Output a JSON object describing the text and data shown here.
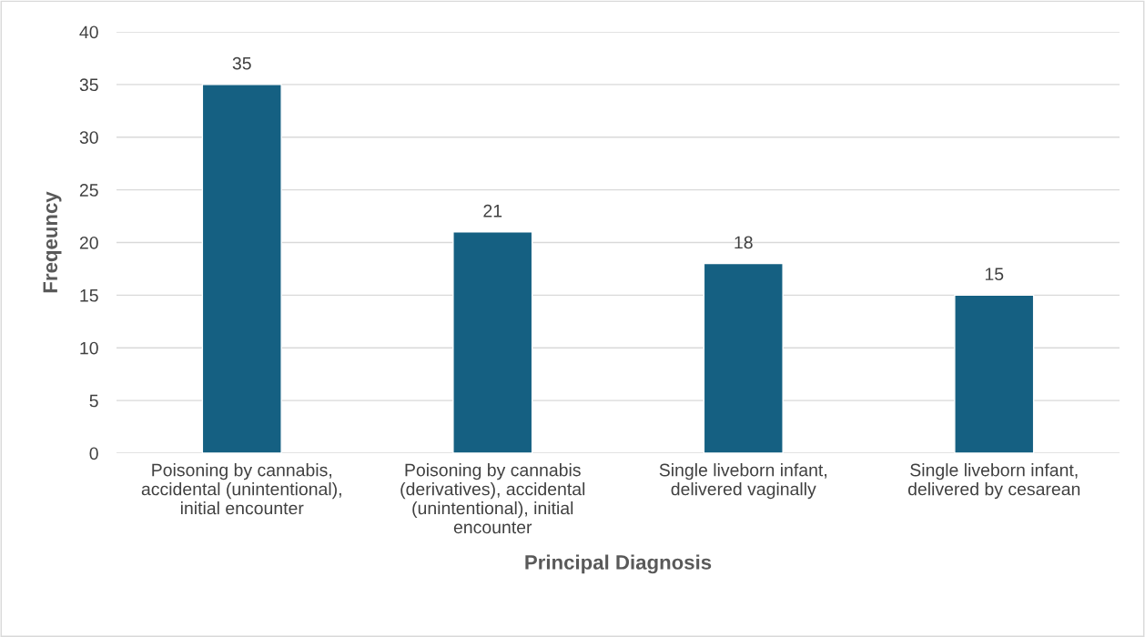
{
  "chart_data": {
    "type": "bar",
    "xlabel": "Principal Diagnosis",
    "ylabel": "Freqeuncy",
    "categories": [
      "Poisoning by cannabis,\naccidental (unintentional),\ninitial encounter",
      "Poisoning by cannabis\n(derivatives), accidental\n(unintentional), initial\nencounter",
      "Single liveborn infant,\ndelivered vaginally",
      "Single liveborn infant,\ndelivered by cesarean"
    ],
    "values": [
      35,
      21,
      18,
      15
    ],
    "color": "#156082",
    "ylim": [
      0,
      40
    ],
    "yticks": [
      0,
      5,
      10,
      15,
      20,
      25,
      30,
      35,
      40
    ],
    "grid": "y",
    "data_labels": true,
    "legend": false
  }
}
